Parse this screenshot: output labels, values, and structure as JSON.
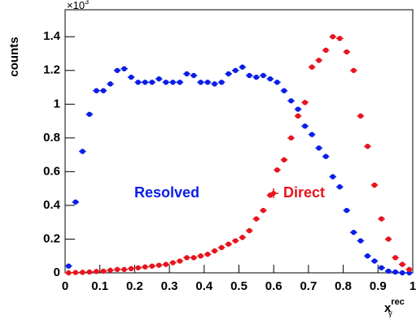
{
  "chart_data": {
    "type": "scatter",
    "y_scale_label": "×10",
    "y_scale_exponent": "3",
    "ylabel": "counts",
    "xlabel": "x",
    "xlabel_sup": "rec",
    "xlabel_sub": "γ",
    "xlim": [
      0,
      1
    ],
    "ylim": [
      0,
      1.56
    ],
    "xticks": [
      0,
      0.1,
      0.2,
      0.3,
      0.4,
      0.5,
      0.6,
      0.7,
      0.8,
      0.9,
      1
    ],
    "yticks": [
      0,
      0.2,
      0.4,
      0.6,
      0.8,
      1,
      1.2,
      1.4
    ],
    "x": [
      0.01,
      0.03,
      0.05,
      0.07,
      0.09,
      0.11,
      0.13,
      0.15,
      0.17,
      0.19,
      0.21,
      0.23,
      0.25,
      0.27,
      0.29,
      0.31,
      0.33,
      0.35,
      0.37,
      0.39,
      0.41,
      0.43,
      0.45,
      0.47,
      0.49,
      0.51,
      0.53,
      0.55,
      0.57,
      0.59,
      0.61,
      0.63,
      0.65,
      0.67,
      0.69,
      0.71,
      0.73,
      0.75,
      0.77,
      0.79,
      0.81,
      0.83,
      0.85,
      0.87,
      0.89,
      0.91,
      0.93,
      0.95,
      0.97,
      0.99
    ],
    "series": [
      {
        "name": "Resolved",
        "color": "#0a1ee6",
        "values": [
          0.04,
          0.42,
          0.72,
          0.94,
          1.08,
          1.08,
          1.12,
          1.2,
          1.21,
          1.16,
          1.13,
          1.13,
          1.13,
          1.15,
          1.13,
          1.13,
          1.13,
          1.18,
          1.17,
          1.13,
          1.13,
          1.12,
          1.13,
          1.18,
          1.2,
          1.22,
          1.17,
          1.16,
          1.17,
          1.15,
          1.13,
          1.08,
          1.02,
          0.97,
          0.87,
          0.82,
          0.74,
          0.69,
          0.57,
          0.51,
          0.37,
          0.24,
          0.19,
          0.1,
          0.07,
          0.03,
          0.01,
          0.005,
          0,
          0
        ]
      },
      {
        "name": "Direct",
        "color": "#e6141e",
        "values": [
          0,
          0.002,
          0.003,
          0.005,
          0.008,
          0.01,
          0.015,
          0.02,
          0.02,
          0.025,
          0.03,
          0.035,
          0.04,
          0.045,
          0.05,
          0.06,
          0.07,
          0.09,
          0.09,
          0.1,
          0.11,
          0.13,
          0.15,
          0.17,
          0.19,
          0.21,
          0.25,
          0.32,
          0.37,
          0.46,
          0.61,
          0.67,
          0.8,
          0.93,
          1.01,
          1.22,
          1.26,
          1.32,
          1.4,
          1.39,
          1.31,
          1.2,
          0.93,
          0.75,
          0.52,
          0.32,
          0.2,
          0.09,
          0.05,
          0.02
        ]
      }
    ]
  }
}
